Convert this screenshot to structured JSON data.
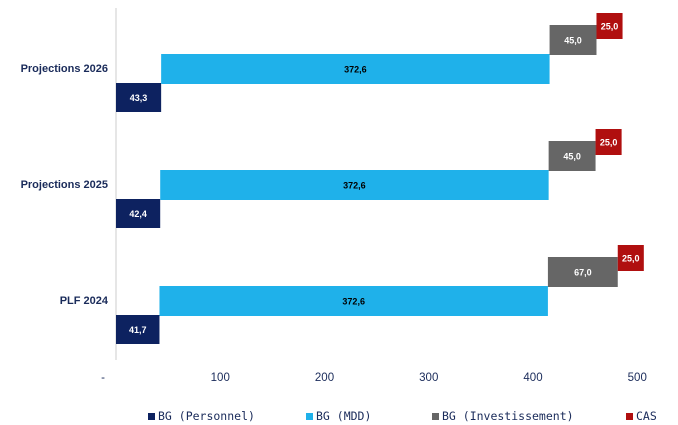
{
  "chart_data": {
    "type": "bar",
    "orientation": "horizontal-waterfall",
    "categories": [
      "Projections 2026",
      "Projections 2025",
      "PLF 2024"
    ],
    "series": [
      {
        "name": "BG (Personnel)",
        "color": "#0d2260",
        "values": [
          43.3,
          42.4,
          41.7
        ],
        "labels": [
          "43,3",
          "42,4",
          "41,7"
        ]
      },
      {
        "name": "BG (MDD)",
        "color": "#1fb1ea",
        "values": [
          372.6,
          372.6,
          372.6
        ],
        "labels": [
          "372,6",
          "372,6",
          "372,6"
        ]
      },
      {
        "name": "BG (Investissement)",
        "color": "#666666",
        "values": [
          45.0,
          45.0,
          67.0
        ],
        "labels": [
          "45,0",
          "45,0",
          "67,0"
        ]
      },
      {
        "name": "CAS",
        "color": "#b00f0f",
        "values": [
          25.0,
          25.0,
          25.0
        ],
        "labels": [
          "25,0",
          "25,0",
          "25,0"
        ]
      }
    ],
    "x_ticks": [
      "-",
      "100",
      "200",
      "300",
      "400",
      "500"
    ],
    "xlim": [
      0,
      550
    ],
    "grid": false,
    "legend_position": "bottom"
  }
}
